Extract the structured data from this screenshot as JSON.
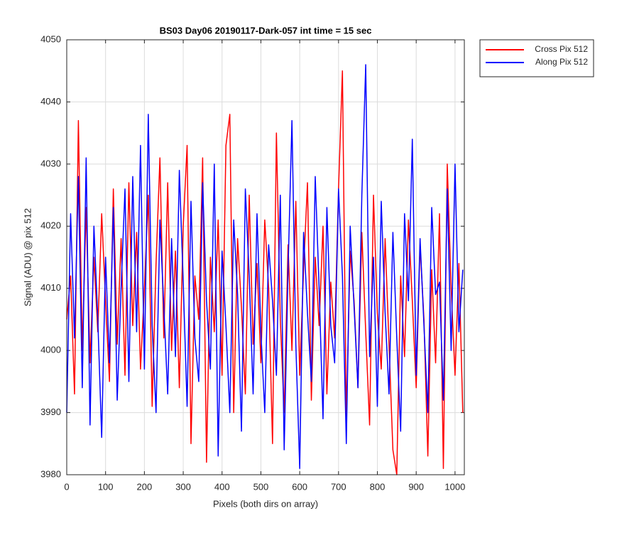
{
  "chart_data": {
    "type": "line",
    "title": "BS03 Day06 20190117-Dark-057 int time = 15 sec",
    "x_label": "Pixels (both dirs on array)",
    "y_label": "Signal (ADU) @ pix 512",
    "x": [
      0,
      10,
      20,
      30,
      40,
      50,
      60,
      70,
      80,
      90,
      100,
      110,
      120,
      130,
      140,
      150,
      160,
      170,
      180,
      190,
      200,
      210,
      220,
      230,
      240,
      250,
      260,
      270,
      280,
      290,
      300,
      310,
      320,
      330,
      340,
      350,
      360,
      370,
      380,
      390,
      400,
      410,
      420,
      430,
      440,
      450,
      460,
      470,
      480,
      490,
      500,
      510,
      520,
      530,
      540,
      550,
      560,
      570,
      580,
      590,
      600,
      610,
      620,
      630,
      640,
      650,
      660,
      670,
      680,
      690,
      700,
      710,
      720,
      730,
      740,
      750,
      760,
      770,
      780,
      790,
      800,
      810,
      820,
      830,
      840,
      850,
      860,
      870,
      880,
      890,
      900,
      910,
      920,
      930,
      940,
      950,
      960,
      970,
      980,
      990,
      1000,
      1010,
      1020
    ],
    "series": [
      {
        "name": "Cross Pix 512",
        "color": "#ff0000",
        "values": [
          4005,
          4012,
          3993,
          4037,
          4000,
          4023,
          3998,
          4015,
          4003,
          4022,
          4008,
          3995,
          4026,
          4001,
          4018,
          3996,
          4027,
          4004,
          4019,
          3997,
          4010,
          4025,
          3991,
          4014,
          4031,
          4002,
          4027,
          4000,
          4016,
          3994,
          4020,
          4033,
          3985,
          4012,
          4005,
          4031,
          3982,
          4015,
          4003,
          4021,
          3996,
          4033,
          4038,
          3990,
          4018,
          4007,
          3993,
          4025,
          4001,
          4014,
          3998,
          4021,
          4010,
          3985,
          4035,
          4005,
          3990,
          4017,
          4000,
          4024,
          3996,
          4013,
          4027,
          3992,
          4015,
          4004,
          4020,
          3993,
          4011,
          4002,
          4026,
          4045,
          3989,
          4016,
          4008,
          3994,
          4019,
          4003,
          3988,
          4025,
          4006,
          3997,
          4018,
          4001,
          3984,
          3980,
          4012,
          3999,
          4021,
          4008,
          3994,
          4017,
          4005,
          3983,
          4013,
          3998,
          4022,
          3981,
          4030,
          4010,
          3996,
          4014,
          3990
        ]
      },
      {
        "name": "Along Pix 512",
        "color": "#0000ff",
        "values": [
          3990,
          4022,
          4002,
          4028,
          3994,
          4031,
          3988,
          4020,
          4005,
          3986,
          4015,
          3998,
          4023,
          3992,
          4010,
          4026,
          3995,
          4028,
          4003,
          4033,
          3997,
          4038,
          4004,
          3990,
          4021,
          4007,
          3993,
          4018,
          3999,
          4029,
          4011,
          3991,
          4024,
          4002,
          3995,
          4027,
          4008,
          3997,
          4030,
          3983,
          4016,
          4004,
          3990,
          4021,
          4009,
          3987,
          4026,
          4012,
          3993,
          4022,
          4003,
          3990,
          4017,
          4008,
          3996,
          4025,
          3984,
          4013,
          4037,
          4001,
          3981,
          4019,
          4006,
          3995,
          4028,
          4010,
          3989,
          4023,
          4004,
          3998,
          4026,
          4012,
          3985,
          4020,
          4007,
          3994,
          4025,
          4046,
          3999,
          4015,
          3991,
          4024,
          4006,
          3993,
          4019,
          4002,
          3987,
          4022,
          4008,
          4034,
          3996,
          4018,
          4004,
          3990,
          4023,
          4009,
          4011,
          3992,
          4026,
          4000,
          4030,
          4003,
          4013
        ]
      }
    ],
    "xlim": [
      0,
      1024
    ],
    "ylim": [
      3980,
      4050
    ],
    "xticks": [
      0,
      100,
      200,
      300,
      400,
      500,
      600,
      700,
      800,
      900,
      1000
    ],
    "yticks": [
      3980,
      3990,
      4000,
      4010,
      4020,
      4030,
      4040,
      4050
    ],
    "grid": true,
    "legend": "northeastoutside"
  }
}
